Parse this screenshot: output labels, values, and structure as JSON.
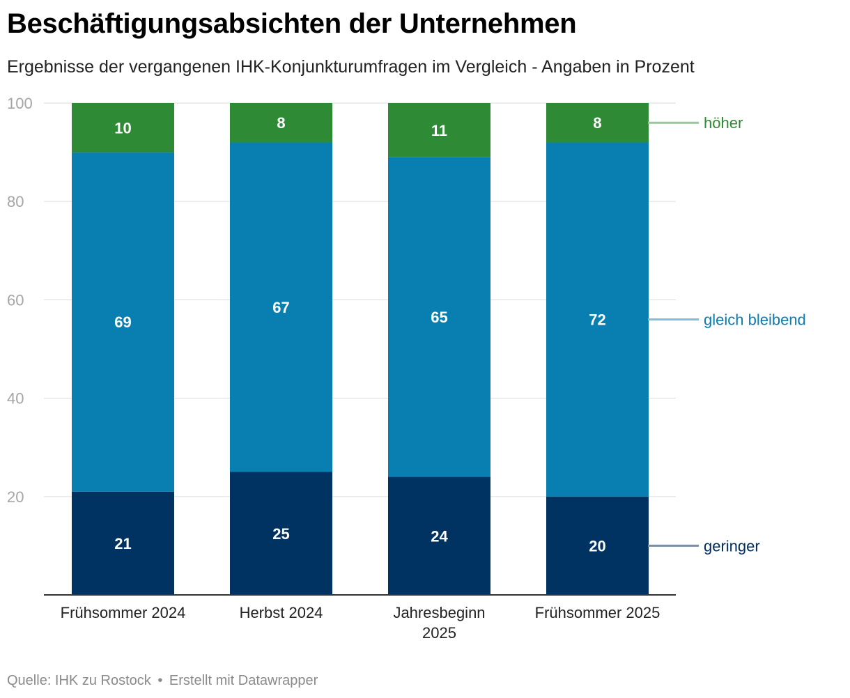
{
  "header": {
    "title": "Beschäftigungsabsichten der Unternehmen",
    "subtitle": "Ergebnisse der vergangenen IHK-Konjunkturumfragen im Vergleich - Angaben in Prozent"
  },
  "footer": {
    "source": "Quelle: IHK zu Rostock",
    "separator": "•",
    "credit": "Erstellt mit Datawrapper"
  },
  "chart_data": {
    "type": "bar",
    "stacked": true,
    "categories": [
      [
        "Frühsommer 2024"
      ],
      [
        "Herbst 2024"
      ],
      [
        "Jahresbeginn",
        "2025"
      ],
      [
        "Frühsommer 2025"
      ]
    ],
    "series": [
      {
        "name": "geringer",
        "values": [
          21,
          25,
          24,
          20
        ],
        "color": "#003262",
        "label_color": "#002c5c",
        "line_color": "#7a8fa6"
      },
      {
        "name": "gleich bleibend",
        "values": [
          69,
          67,
          65,
          72
        ],
        "color": "#087fb0",
        "label_color": "#0b7bb0",
        "line_color": "#7fbcd9"
      },
      {
        "name": "höher",
        "values": [
          10,
          8,
          11,
          8
        ],
        "color": "#2f8a35",
        "label_color": "#2e8a33",
        "line_color": "#98c79b"
      }
    ],
    "ylim": [
      0,
      100
    ],
    "yticks": [
      20,
      40,
      60,
      80,
      100
    ],
    "xlabel": "",
    "ylabel": "",
    "grid": true,
    "legend": "right, inline labels"
  }
}
